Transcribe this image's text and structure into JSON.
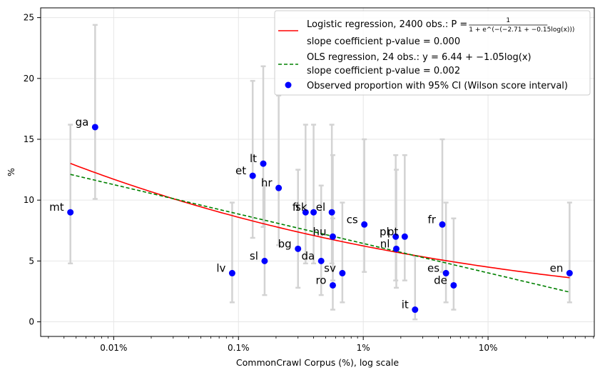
{
  "chart_data": {
    "type": "scatter",
    "xlabel": "CommonCrawl Corpus (%), log scale",
    "ylabel": "%",
    "x_scale": "log",
    "xlim": [
      0.0026,
      71
    ],
    "ylim": [
      -1.2,
      25.8
    ],
    "x_ticks": [
      {
        "value": 0.01,
        "label": "0.01%"
      },
      {
        "value": 0.1,
        "label": "0.1%"
      },
      {
        "value": 1,
        "label": "1%"
      },
      {
        "value": 10,
        "label": "10%"
      }
    ],
    "y_ticks": [
      {
        "value": 0,
        "label": "0"
      },
      {
        "value": 5,
        "label": "5"
      },
      {
        "value": 10,
        "label": "10"
      },
      {
        "value": 15,
        "label": "15"
      },
      {
        "value": 20,
        "label": "20"
      },
      {
        "value": 25,
        "label": "25"
      }
    ],
    "grid": true,
    "legend_position": "top-right",
    "legend": {
      "logistic_label": "Logistic regression, 2400 obs.: P = ",
      "logistic_formula_num": "1",
      "logistic_formula_den": "1 + e^(−(−2.71 + −0.15log(x)))",
      "logistic_pvalue": "slope coefficient p-value = 0.000",
      "ols_label": "OLS regression, 24 obs.: y = 6.44 + −1.05log(x)",
      "ols_pvalue": "slope coefficient p-value = 0.002",
      "observed_label": "Observed proportion with 95% CI (Wilson score interval)"
    },
    "colors": {
      "points": "#0000ff",
      "logistic": "#ff0000",
      "ols": "#008000",
      "errorbars": "#d3d3d3",
      "grid": "#e6e6e6"
    },
    "points": [
      {
        "label": "mt",
        "x": 0.0045,
        "y": 9,
        "ci": [
          4.8,
          16.2
        ]
      },
      {
        "label": "ga",
        "x": 0.0071,
        "y": 16,
        "ci": [
          10.1,
          24.4
        ]
      },
      {
        "label": "lv",
        "x": 0.089,
        "y": 4,
        "ci": [
          1.6,
          9.8
        ]
      },
      {
        "label": "et",
        "x": 0.13,
        "y": 12,
        "ci": [
          6.9,
          19.8
        ]
      },
      {
        "label": "lt",
        "x": 0.158,
        "y": 13,
        "ci": [
          7.8,
          21.0
        ]
      },
      {
        "label": "sl",
        "x": 0.162,
        "y": 5,
        "ci": [
          2.2,
          11.2
        ]
      },
      {
        "label": "hr",
        "x": 0.21,
        "y": 11,
        "ci": [
          6.3,
          18.6
        ]
      },
      {
        "label": "bg",
        "x": 0.3,
        "y": 6,
        "ci": [
          2.8,
          12.5
        ]
      },
      {
        "label": "fi",
        "x": 0.345,
        "y": 9,
        "ci": [
          4.8,
          16.2
        ]
      },
      {
        "label": "sk",
        "x": 0.4,
        "y": 9,
        "ci": [
          4.8,
          16.2
        ]
      },
      {
        "label": "da",
        "x": 0.46,
        "y": 5,
        "ci": [
          2.2,
          11.2
        ]
      },
      {
        "label": "el",
        "x": 0.56,
        "y": 9,
        "ci": [
          4.8,
          16.2
        ]
      },
      {
        "label": "hu",
        "x": 0.57,
        "y": 7,
        "ci": [
          3.4,
          13.7
        ]
      },
      {
        "label": "ro",
        "x": 0.57,
        "y": 3,
        "ci": [
          1.0,
          8.5
        ]
      },
      {
        "label": "sv",
        "x": 0.68,
        "y": 4,
        "ci": [
          1.6,
          9.8
        ]
      },
      {
        "label": "cs",
        "x": 1.02,
        "y": 8,
        "ci": [
          4.1,
          15.0
        ]
      },
      {
        "label": "pl",
        "x": 1.82,
        "y": 7,
        "ci": [
          3.4,
          13.7
        ]
      },
      {
        "label": "nl",
        "x": 1.84,
        "y": 6,
        "ci": [
          2.8,
          12.5
        ]
      },
      {
        "label": "pt",
        "x": 2.15,
        "y": 7,
        "ci": [
          3.4,
          13.7
        ]
      },
      {
        "label": "it",
        "x": 2.6,
        "y": 1,
        "ci": [
          0.2,
          5.4
        ]
      },
      {
        "label": "fr",
        "x": 4.3,
        "y": 8,
        "ci": [
          4.1,
          15.0
        ]
      },
      {
        "label": "es",
        "x": 4.6,
        "y": 4,
        "ci": [
          1.6,
          9.8
        ]
      },
      {
        "label": "de",
        "x": 5.3,
        "y": 3,
        "ci": [
          1.0,
          8.5
        ]
      },
      {
        "label": "en",
        "x": 45,
        "y": 4,
        "ci": [
          1.6,
          9.8
        ]
      }
    ],
    "logistic_fit": {
      "intercept": -2.71,
      "slope": -0.15,
      "x_range": [
        0.0045,
        45
      ]
    },
    "ols_fit": {
      "intercept": 6.44,
      "slope": -1.05,
      "x_range": [
        0.0045,
        45
      ]
    }
  }
}
